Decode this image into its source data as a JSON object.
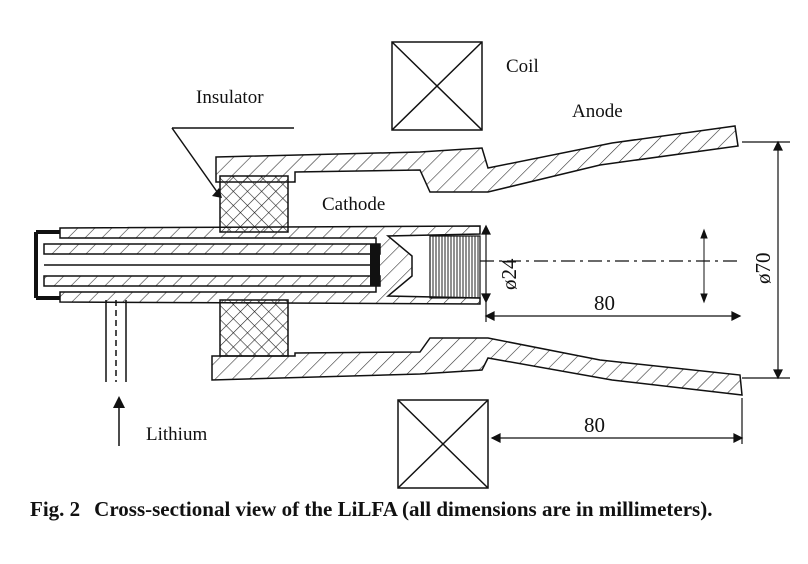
{
  "labels": {
    "coil": "Coil",
    "anode": "Anode",
    "insulator": "Insulator",
    "cathode": "Cathode",
    "lithium": "Lithium"
  },
  "dimensions": {
    "cathode_diameter": "ø24",
    "anode_exit_diameter": "ø70",
    "cathode_to_exit": "80",
    "coil_to_exit": "80"
  },
  "caption": {
    "number": "Fig. 2",
    "text": "Cross-sectional view of the LiLFA (all dimensions are in millimeters)."
  }
}
